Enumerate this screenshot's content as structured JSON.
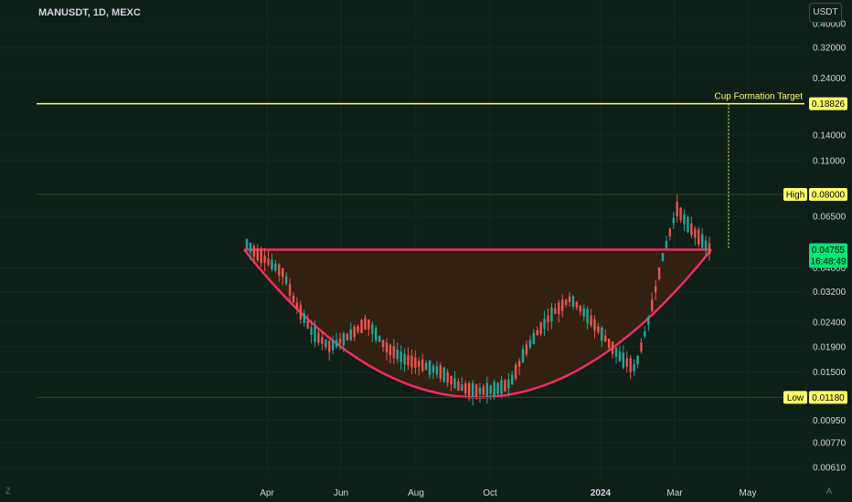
{
  "header": {
    "symbol": "MANUSDT, 1D, MEXC"
  },
  "currency_button": "USDT",
  "corner": {
    "left": "Z",
    "right": "A"
  },
  "chart_data": {
    "type": "candlestick",
    "title": "MANUSDT, 1D, MEXC",
    "y_scale": "log",
    "ylim": [
      0.0055,
      0.44
    ],
    "y_ticks": [
      "0.40000",
      "0.32000",
      "0.24000",
      "0.14000",
      "0.11000",
      "0.06500",
      "0.04000",
      "0.03200",
      "0.02400",
      "0.01900",
      "0.01500",
      "0.00950",
      "0.00770",
      "0.00610"
    ],
    "x_ticks": [
      "Apr",
      "Jun",
      "Aug",
      "Oct",
      "2024",
      "Mar",
      "May"
    ],
    "levels": [
      {
        "label": "Cup Formation Target",
        "value": "0.18826",
        "color": "#ffff66"
      },
      {
        "label": "High",
        "value": "0.08000",
        "color": "#ffff66"
      },
      {
        "label": "Low",
        "value": "0.01180",
        "color": "#ffff66"
      }
    ],
    "current_price": {
      "value": "0.04755",
      "countdown": "16:48:49",
      "color": "#00e676"
    },
    "pattern": {
      "name": "cup",
      "rim": 0.04755,
      "bottom": 0.0118,
      "color": "#ee2e5e"
    },
    "price_path": [
      [
        0,
        0.05
      ],
      [
        0.02,
        0.046
      ],
      [
        0.05,
        0.042
      ],
      [
        0.08,
        0.038
      ],
      [
        0.1,
        0.03
      ],
      [
        0.14,
        0.022
      ],
      [
        0.18,
        0.019
      ],
      [
        0.22,
        0.021
      ],
      [
        0.26,
        0.024
      ],
      [
        0.3,
        0.019
      ],
      [
        0.34,
        0.017
      ],
      [
        0.38,
        0.016
      ],
      [
        0.42,
        0.015
      ],
      [
        0.46,
        0.013
      ],
      [
        0.5,
        0.0125
      ],
      [
        0.54,
        0.0128
      ],
      [
        0.57,
        0.0135
      ],
      [
        0.6,
        0.018
      ],
      [
        0.63,
        0.022
      ],
      [
        0.66,
        0.026
      ],
      [
        0.7,
        0.03
      ],
      [
        0.74,
        0.025
      ],
      [
        0.78,
        0.02
      ],
      [
        0.81,
        0.017
      ],
      [
        0.84,
        0.0155
      ],
      [
        0.87,
        0.025
      ],
      [
        0.9,
        0.045
      ],
      [
        0.93,
        0.07
      ],
      [
        0.96,
        0.058
      ],
      [
        1.0,
        0.048
      ]
    ]
  }
}
